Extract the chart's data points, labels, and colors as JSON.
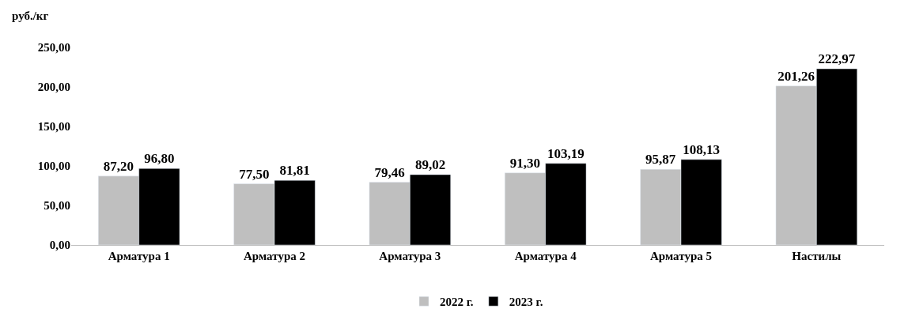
{
  "chart_data": {
    "type": "bar",
    "ylabel": "руб./кг",
    "categories": [
      "Арматура 1",
      "Арматура 2",
      "Арматура 3",
      "Арматура 4",
      "Арматура 5",
      "Настилы"
    ],
    "series": [
      {
        "name": "2022 г.",
        "color": "#bfbfbf",
        "values": [
          87.2,
          77.5,
          79.46,
          91.3,
          95.87,
          201.26
        ],
        "value_labels": [
          "87,20",
          "77,50",
          "79,46",
          "91,30",
          "95,87",
          "201,26"
        ]
      },
      {
        "name": "2023 г.",
        "color": "#000000",
        "values": [
          96.8,
          81.81,
          89.02,
          103.19,
          108.13,
          222.97
        ],
        "value_labels": [
          "96,80",
          "81,81",
          "89,02",
          "103,19",
          "108,13",
          "222,97"
        ]
      }
    ],
    "ylim": [
      0,
      250
    ],
    "yticks": [
      {
        "value": 0,
        "label": "0,00"
      },
      {
        "value": 50,
        "label": "50,00"
      },
      {
        "value": 100,
        "label": "100,00"
      },
      {
        "value": 150,
        "label": "150,00"
      },
      {
        "value": 200,
        "label": "200,00"
      },
      {
        "value": 250,
        "label": "250,00"
      }
    ],
    "legend": "bottom"
  }
}
